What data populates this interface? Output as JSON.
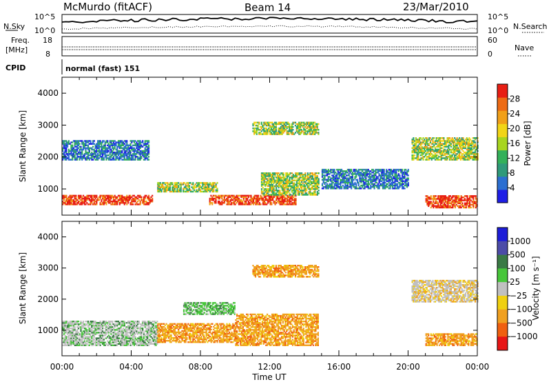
{
  "header": {
    "title": "McMurdo (fitACF)",
    "beam": "Beam 14",
    "date": "23/Mar/2010"
  },
  "top_panel": {
    "left_label": "N.Sky",
    "right_label": "N.Search",
    "left_ticks": [
      "10^5",
      "10^0"
    ],
    "right_ticks": [
      "10^5",
      "10^0"
    ]
  },
  "freq_panel": {
    "left_label_1": "Freq.",
    "left_label_2": "[MHz]",
    "left_ticks": [
      "18",
      "8"
    ],
    "right_label": "Nave",
    "right_ticks": [
      "60",
      "0"
    ]
  },
  "cpid": {
    "label": "CPID",
    "value": "normal (fast) 151"
  },
  "colors": {
    "power": [
      "#1e1ee6",
      "#2c6fd1",
      "#2f9a7a",
      "#33b15a",
      "#a8d51f",
      "#f2d517",
      "#f1a019",
      "#ee6b14",
      "#e81e14"
    ],
    "velocity": [
      "#1d1dd8",
      "#4c4ca8",
      "#3a7a45",
      "#47c63a",
      "#c0c0c0",
      "#f0d010",
      "#f0a020",
      "#f06010",
      "#e81616"
    ]
  },
  "chart_data": [
    {
      "type": "heatmap",
      "name": "power",
      "ylabel": "Slant Range [km]",
      "xlabel": "",
      "x_ticks": [
        "00:00",
        "04:00",
        "08:00",
        "12:00",
        "16:00",
        "20:00",
        "00:00"
      ],
      "xlim_hours": [
        0,
        24
      ],
      "ylim_km": [
        180,
        4500
      ],
      "y_ticks": [
        1000,
        2000,
        3000,
        4000
      ],
      "colorbar": {
        "label": "Power [dB]",
        "range": [
          0,
          32
        ],
        "ticks": [
          4,
          8,
          12,
          16,
          20,
          24,
          28
        ]
      },
      "echo_regions": [
        {
          "t": [
            0.0,
            5.2
          ],
          "r": [
            500,
            800
          ],
          "level": "high"
        },
        {
          "t": [
            5.5,
            9.0
          ],
          "r": [
            900,
            1200
          ],
          "level": "mid"
        },
        {
          "t": [
            8.5,
            13.5
          ],
          "r": [
            500,
            800
          ],
          "level": "high"
        },
        {
          "t": [
            11.5,
            14.8
          ],
          "r": [
            800,
            1500
          ],
          "level": "mid"
        },
        {
          "t": [
            0.0,
            5.0
          ],
          "r": [
            1900,
            2500
          ],
          "level": "low"
        },
        {
          "t": [
            11.0,
            14.8
          ],
          "r": [
            2700,
            3100
          ],
          "level": "mid"
        },
        {
          "t": [
            20.2,
            24.0
          ],
          "r": [
            1900,
            2600
          ],
          "level": "mid"
        },
        {
          "t": [
            21.0,
            24.0
          ],
          "r": [
            400,
            800
          ],
          "level": "high"
        },
        {
          "t": [
            15.0,
            20.0
          ],
          "r": [
            1000,
            1600
          ],
          "level": "low"
        }
      ]
    },
    {
      "type": "heatmap",
      "name": "velocity",
      "ylabel": "Slant Range [km]",
      "xlabel": "Time UT",
      "x_ticks": [
        "00:00",
        "04:00",
        "08:00",
        "12:00",
        "16:00",
        "20:00",
        "00:00"
      ],
      "xlim_hours": [
        0,
        24
      ],
      "ylim_km": [
        180,
        4500
      ],
      "y_ticks": [
        1000,
        2000,
        3000,
        4000
      ],
      "colorbar": {
        "label": "Velocity [m s⁻¹]",
        "ticks": [
          "1000",
          "500",
          "100",
          "25",
          "−25",
          "−100",
          "−500",
          "−1000"
        ]
      },
      "echo_regions": [
        {
          "t": [
            0.0,
            5.5
          ],
          "r": [
            500,
            1300
          ],
          "level": "gray-green"
        },
        {
          "t": [
            5.5,
            10.0
          ],
          "r": [
            600,
            1200
          ],
          "level": "orange"
        },
        {
          "t": [
            10.0,
            14.8
          ],
          "r": [
            500,
            1500
          ],
          "level": "orange"
        },
        {
          "t": [
            7.0,
            10.0
          ],
          "r": [
            1500,
            1900
          ],
          "level": "green"
        },
        {
          "t": [
            11.0,
            14.8
          ],
          "r": [
            2700,
            3100
          ],
          "level": "orange"
        },
        {
          "t": [
            20.2,
            24.0
          ],
          "r": [
            1900,
            2600
          ],
          "level": "gray"
        },
        {
          "t": [
            21.0,
            24.0
          ],
          "r": [
            500,
            900
          ],
          "level": "orange"
        }
      ]
    }
  ]
}
